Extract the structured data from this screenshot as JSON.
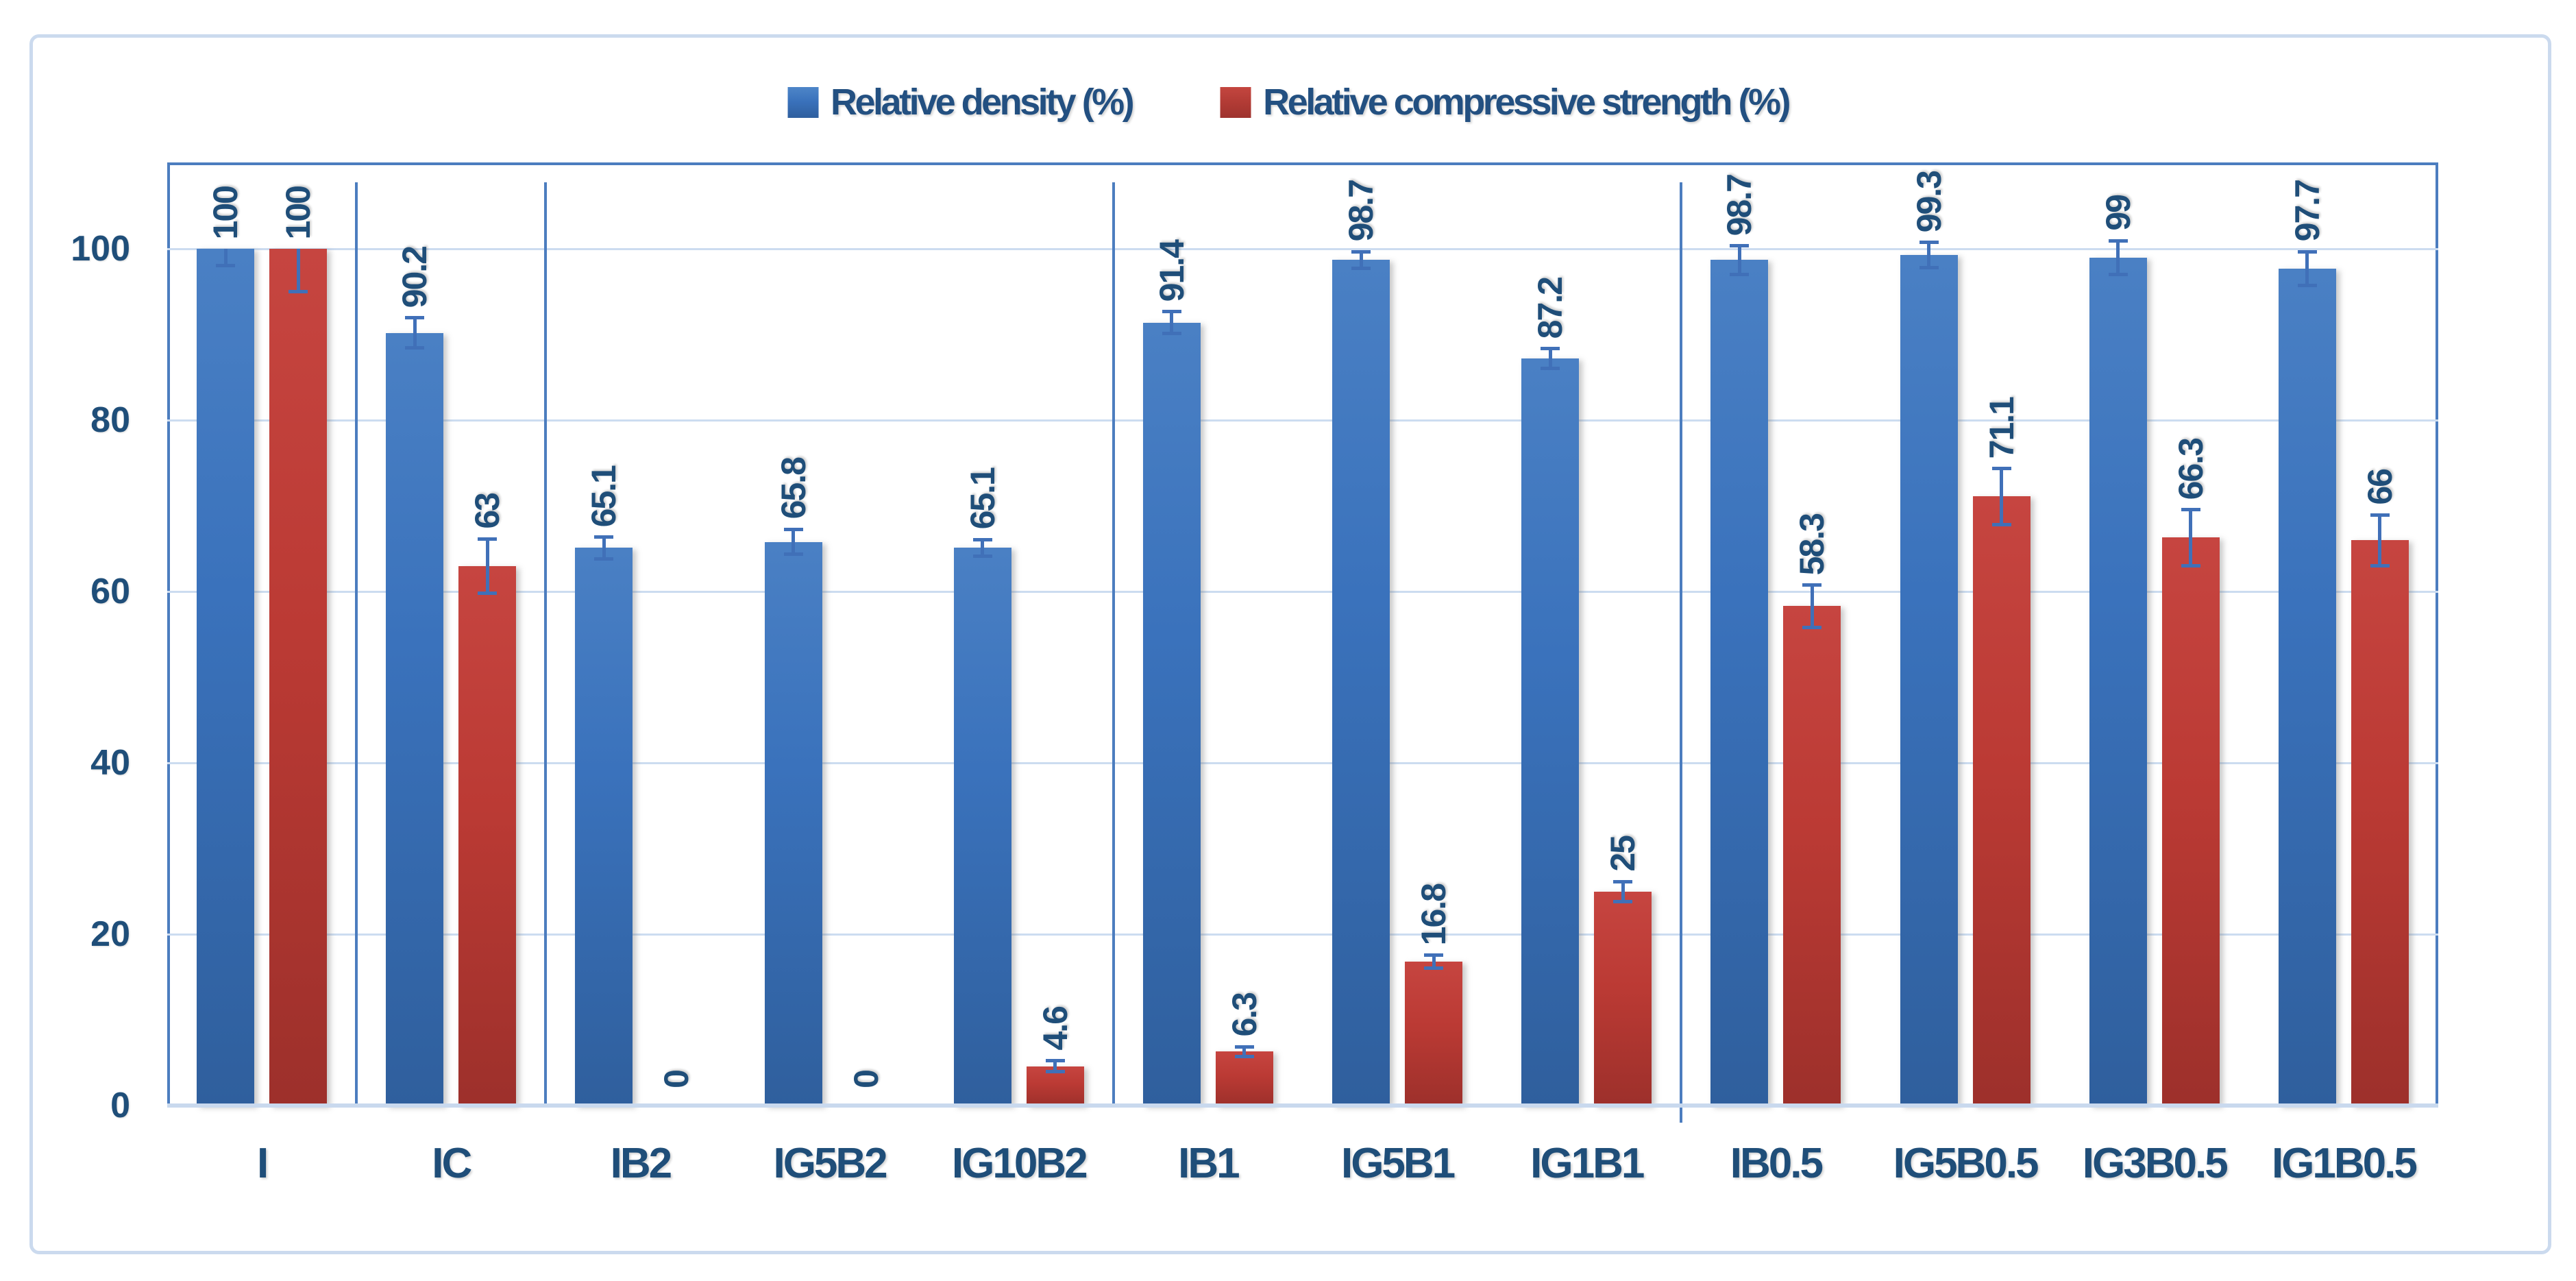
{
  "legend": {
    "items": [
      {
        "label": "Relative density (%)",
        "swatch": "blue-square-swatch",
        "color": "#3A72BC"
      },
      {
        "label": "Relative compressive strength (%)",
        "swatch": "red-square-swatch",
        "color": "#BB3A34"
      }
    ]
  },
  "chart_data": {
    "type": "bar",
    "title": "",
    "xlabel": "",
    "ylabel": "",
    "categories": [
      "I",
      "IC",
      "IB2",
      "IG5B2",
      "IG10B2",
      "IB1",
      "IG5B1",
      "IG1B1",
      "IB0.5",
      "IG5B0.5",
      "IG3B0.5",
      "IG1B0.5"
    ],
    "series": [
      {
        "name": "Relative density (%)",
        "color": "#3A72BC",
        "values": [
          100,
          90.2,
          65.1,
          65.8,
          65.1,
          91.4,
          98.7,
          87.2,
          98.7,
          99.3,
          99,
          97.7
        ],
        "labels": [
          "100",
          "90.2",
          "65.1",
          "65.8",
          "65.1",
          "91.4",
          "98.7",
          "87.2",
          "98.7",
          "99.3",
          "99",
          "97.7"
        ],
        "err_plus": [
          0,
          1.8,
          1.3,
          1.5,
          1,
          1.3,
          1,
          1.2,
          1.7,
          1.5,
          2,
          2
        ],
        "err_minus": [
          2,
          1.8,
          1.3,
          1.5,
          1,
          1.3,
          1,
          1.2,
          1.7,
          1.5,
          2,
          2
        ]
      },
      {
        "name": "Relative compressive strength (%)",
        "color": "#BB3A34",
        "values": [
          100,
          63,
          0,
          0,
          4.6,
          6.3,
          16.8,
          25,
          58.3,
          71.1,
          66.3,
          66
        ],
        "labels": [
          "100",
          "63",
          "0",
          "0",
          "4.6",
          "6.3",
          "16.8",
          "25",
          "58.3",
          "71.1",
          "66.3",
          "66"
        ],
        "err_plus": [
          0,
          3.2,
          0,
          0,
          0.7,
          0.6,
          0.8,
          1.2,
          2.5,
          3.3,
          3.3,
          3
        ],
        "err_minus": [
          5,
          3.2,
          0,
          0,
          0.7,
          0.6,
          0.8,
          1.2,
          2.5,
          3.3,
          3.3,
          3
        ]
      }
    ],
    "ylim": [
      0,
      110
    ],
    "yticks": [
      0,
      20,
      40,
      60,
      80,
      100
    ],
    "grid": true,
    "legend_position": "top",
    "group_dividers_after": [
      0,
      1,
      4,
      7
    ],
    "error_bar_color": "#4070B8",
    "gridline_color": "#CCDCF0",
    "axis_border_color": "#4C7DBF",
    "label_color": "#1F4E79"
  }
}
